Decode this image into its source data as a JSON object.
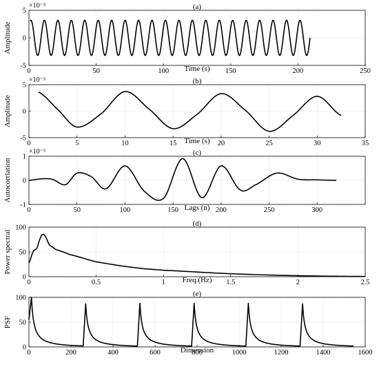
{
  "chart_data": [
    {
      "id": "a",
      "type": "line",
      "title": "(a)",
      "xlabel": "Time (s)",
      "ylabel": "Amplitude",
      "multiplier": "×10⁻³",
      "xlim": [
        0,
        250
      ],
      "ylim": [
        -5,
        5
      ],
      "xticks": [
        0,
        50,
        100,
        150,
        200,
        250
      ],
      "yticks": [
        -5,
        0,
        5
      ],
      "grid": true,
      "signal": {
        "kind": "sine",
        "x_start": 1,
        "x_end": 209,
        "period": 10,
        "amplitude": 3.2,
        "phase_x": 1.5,
        "samples": 1200
      }
    },
    {
      "id": "b",
      "type": "line",
      "title": "(b)",
      "xlabel": "Time (s)",
      "ylabel": "Amplitude",
      "multiplier": "×10⁻³",
      "xlim": [
        0,
        35
      ],
      "ylim": [
        -5,
        5
      ],
      "xticks": [
        0,
        5,
        10,
        15,
        20,
        25,
        30,
        35
      ],
      "yticks": [
        -5,
        0,
        5
      ],
      "grid": true,
      "x": [
        1,
        3,
        5,
        7.5,
        10,
        12.5,
        15,
        17.5,
        20,
        22.5,
        25,
        27.5,
        30,
        32.5
      ],
      "y": [
        3.6,
        0.3,
        -3.0,
        -0.5,
        3.7,
        0.4,
        -3.3,
        -0.6,
        3.3,
        0.2,
        -3.8,
        -0.8,
        2.8,
        -0.8
      ]
    },
    {
      "id": "c",
      "type": "line",
      "title": "(c)",
      "xlabel": "Lags (n)",
      "ylabel": "Autocorrlation",
      "multiplier": "×10⁻³",
      "xlim": [
        0,
        350
      ],
      "ylim": [
        -1,
        1
      ],
      "xticks": [
        0,
        50,
        100,
        150,
        200,
        250,
        300
      ],
      "yticks": [
        -1,
        0,
        1
      ],
      "grid": true,
      "x": [
        0,
        10,
        18,
        25,
        38,
        50,
        65,
        80,
        100,
        120,
        140,
        160,
        180,
        200,
        220,
        235,
        258,
        280,
        300,
        320
      ],
      "y": [
        0,
        0.05,
        0.07,
        0.03,
        -0.18,
        0.3,
        0.15,
        -0.35,
        0.6,
        -0.45,
        -0.75,
        0.9,
        -0.72,
        0.6,
        -0.4,
        -0.2,
        0.3,
        0.05,
        0.02,
        0
      ]
    },
    {
      "id": "d",
      "type": "line",
      "title": "(d)",
      "xlabel": "Freq.(Hz)",
      "ylabel": "Power spectral",
      "multiplier": "",
      "xlim": [
        0,
        2.5
      ],
      "ylim": [
        0,
        100
      ],
      "xticks": [
        0,
        0.5,
        1,
        1.5,
        2,
        2.5
      ],
      "yticks": [
        0,
        50,
        100
      ],
      "grid": true,
      "x": [
        0,
        0.03,
        0.06,
        0.08,
        0.1,
        0.12,
        0.15,
        0.2,
        0.3,
        0.5,
        0.8,
        1.0,
        1.5,
        2.0,
        2.5
      ],
      "y": [
        28,
        50,
        58,
        75,
        85,
        82,
        65,
        55,
        45,
        30,
        18,
        13,
        6,
        2,
        0.5
      ]
    },
    {
      "id": "e",
      "type": "line",
      "title": "(e)",
      "xlabel": "Dimension",
      "ylabel": "PSF",
      "multiplier": "",
      "xlim": [
        0,
        1600
      ],
      "ylim": [
        0,
        100
      ],
      "xticks": [
        0,
        200,
        400,
        600,
        800,
        1000,
        1200,
        1400,
        1600
      ],
      "yticks": [
        0,
        50,
        100
      ],
      "grid": true,
      "pulses": {
        "starts": [
          0,
          258,
          516,
          774,
          1032,
          1290
        ],
        "peaks": [
          100,
          87,
          88,
          88,
          88,
          87
        ],
        "rise": 12,
        "decay": 70,
        "end": 1545
      }
    }
  ]
}
